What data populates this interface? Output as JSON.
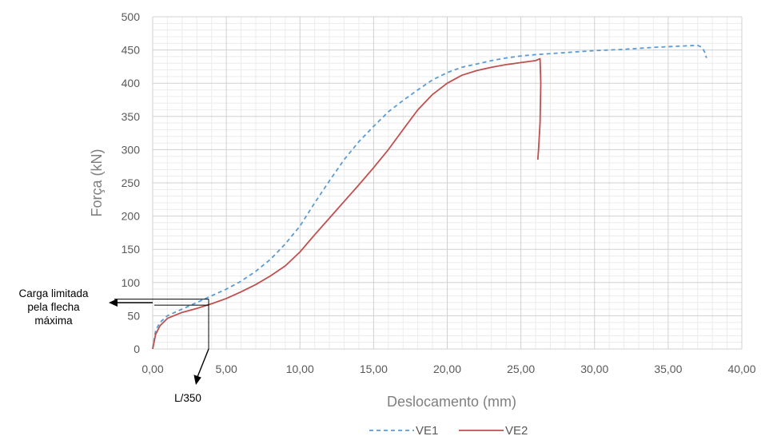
{
  "chart_data": {
    "type": "line",
    "xlabel": "Deslocamento  (mm)",
    "ylabel": "Força (kN)",
    "xlim": [
      0,
      40
    ],
    "ylim": [
      0,
      500
    ],
    "x_ticks": [
      0,
      5,
      10,
      15,
      20,
      25,
      30,
      35,
      40
    ],
    "x_tick_labels": [
      "0,00",
      "5,00",
      "10,00",
      "15,00",
      "20,00",
      "25,00",
      "30,00",
      "35,00",
      "40,00"
    ],
    "y_ticks": [
      0,
      50,
      100,
      150,
      200,
      250,
      300,
      350,
      400,
      450,
      500
    ],
    "y_tick_labels": [
      "0",
      "50",
      "100",
      "150",
      "200",
      "250",
      "300",
      "350",
      "400",
      "450",
      "500"
    ],
    "grid": true,
    "minor_grid": true,
    "legend_position": "bottom",
    "series": [
      {
        "name": "VE1",
        "color": "#5b9bd5",
        "dash": "dashed",
        "points": [
          [
            0,
            0
          ],
          [
            0.2,
            28
          ],
          [
            0.5,
            40
          ],
          [
            1,
            50
          ],
          [
            2,
            60
          ],
          [
            3,
            70
          ],
          [
            4,
            80
          ],
          [
            5,
            90
          ],
          [
            6,
            102
          ],
          [
            7,
            117
          ],
          [
            8,
            135
          ],
          [
            9,
            158
          ],
          [
            10,
            185
          ],
          [
            11,
            220
          ],
          [
            12,
            253
          ],
          [
            13,
            285
          ],
          [
            14,
            312
          ],
          [
            15,
            335
          ],
          [
            16,
            357
          ],
          [
            17,
            374
          ],
          [
            18,
            390
          ],
          [
            19,
            405
          ],
          [
            20,
            416
          ],
          [
            21,
            424
          ],
          [
            22,
            429
          ],
          [
            23,
            434
          ],
          [
            24,
            438
          ],
          [
            25,
            441
          ],
          [
            26,
            443
          ],
          [
            28,
            446
          ],
          [
            30,
            449
          ],
          [
            32,
            451
          ],
          [
            34,
            454
          ],
          [
            36,
            456
          ],
          [
            37,
            457
          ],
          [
            37.3,
            454
          ],
          [
            37.5,
            446
          ],
          [
            37.6,
            438
          ]
        ]
      },
      {
        "name": "VE2",
        "color": "#c0504d",
        "dash": "solid",
        "points": [
          [
            0,
            0
          ],
          [
            0.2,
            22
          ],
          [
            0.5,
            35
          ],
          [
            1,
            46
          ],
          [
            2,
            55
          ],
          [
            3,
            61
          ],
          [
            4,
            68
          ],
          [
            5,
            76
          ],
          [
            6,
            86
          ],
          [
            7,
            97
          ],
          [
            8,
            110
          ],
          [
            9,
            125
          ],
          [
            10,
            146
          ],
          [
            11,
            172
          ],
          [
            12,
            197
          ],
          [
            13,
            222
          ],
          [
            14,
            247
          ],
          [
            15,
            273
          ],
          [
            16,
            300
          ],
          [
            17,
            330
          ],
          [
            18,
            360
          ],
          [
            19,
            383
          ],
          [
            20,
            400
          ],
          [
            21,
            412
          ],
          [
            22,
            419
          ],
          [
            23,
            424
          ],
          [
            24,
            428
          ],
          [
            25,
            431
          ],
          [
            26,
            434
          ],
          [
            26.3,
            437
          ],
          [
            26.35,
            400
          ],
          [
            26.3,
            340
          ],
          [
            26.2,
            300
          ],
          [
            26.15,
            285
          ]
        ]
      }
    ],
    "annotations": {
      "load_label_lines": [
        "Carga limitada",
        "pela flecha",
        "máxima"
      ],
      "deflection_label": "L/350",
      "box_x": 3.8,
      "box_y_top": 75,
      "box_y_bottom": 66
    }
  }
}
